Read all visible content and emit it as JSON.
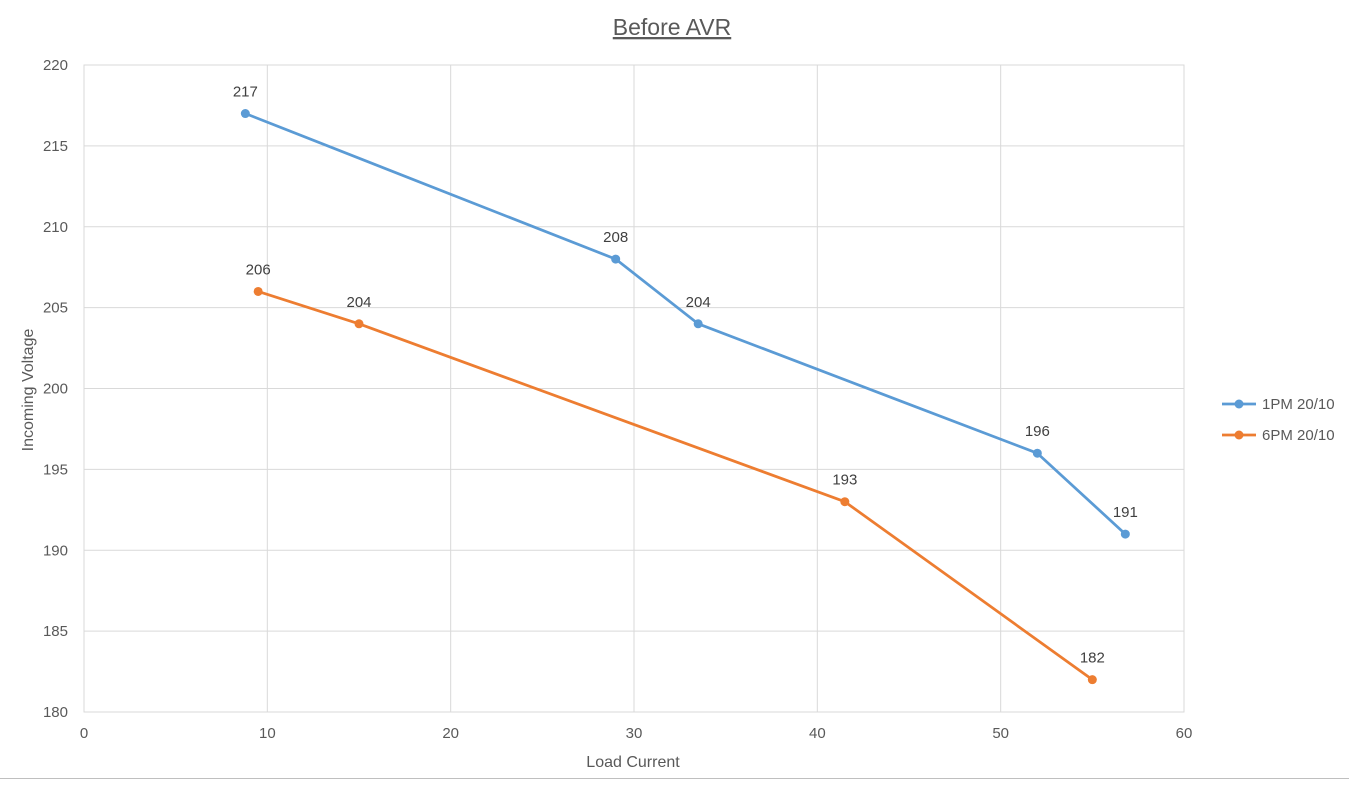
{
  "chart_data": {
    "type": "line",
    "title": "Before AVR",
    "xlabel": "Load Current",
    "ylabel": "Incoming Voltage",
    "xlim": [
      0,
      60
    ],
    "ylim": [
      180,
      220
    ],
    "xticks": [
      0,
      10,
      20,
      30,
      40,
      50,
      60
    ],
    "yticks": [
      180,
      185,
      190,
      195,
      200,
      205,
      210,
      215,
      220
    ],
    "grid": true,
    "legend_position": "right",
    "series": [
      {
        "name": "1PM 20/10",
        "color": "#5b9bd5",
        "points": [
          {
            "x": 8.8,
            "y": 217,
            "label": "217"
          },
          {
            "x": 29,
            "y": 208,
            "label": "208"
          },
          {
            "x": 33.5,
            "y": 204,
            "label": "204"
          },
          {
            "x": 52,
            "y": 196,
            "label": "196"
          },
          {
            "x": 56.8,
            "y": 191,
            "label": "191"
          }
        ]
      },
      {
        "name": "6PM 20/10",
        "color": "#ed7d31",
        "points": [
          {
            "x": 9.5,
            "y": 206,
            "label": "206"
          },
          {
            "x": 15,
            "y": 204,
            "label": "204"
          },
          {
            "x": 41.5,
            "y": 193,
            "label": "193"
          },
          {
            "x": 55,
            "y": 182,
            "label": "182"
          }
        ]
      }
    ]
  }
}
